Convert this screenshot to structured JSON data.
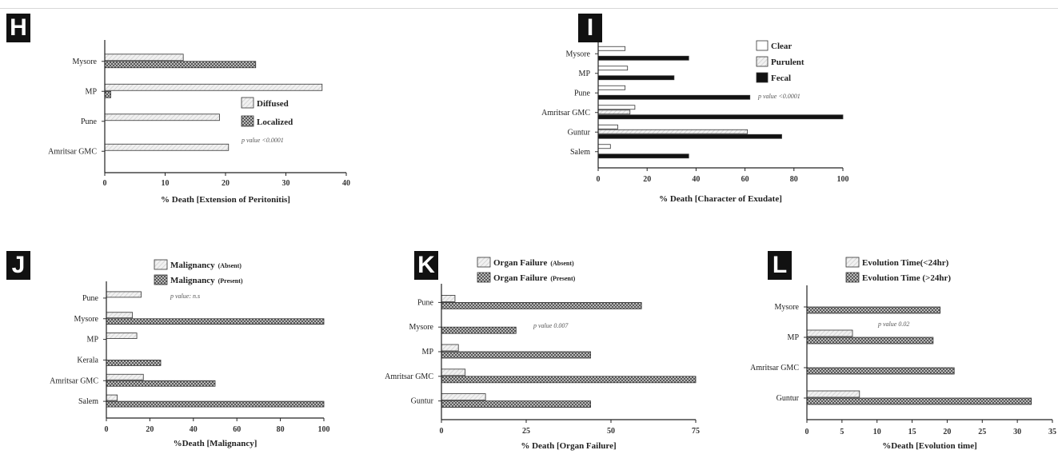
{
  "patterns": {
    "light_color": "#cfcfcf",
    "dark_color": "#555555",
    "black_color": "#111111"
  },
  "chart_data": [
    {
      "panel": "H",
      "type": "bar",
      "orientation": "horizontal",
      "categories": [
        "Mysore",
        "MP",
        "Pune",
        "Amritsar GMC"
      ],
      "series": [
        {
          "name": "Diffused",
          "style": "light",
          "values": [
            13,
            36,
            19,
            20.5
          ]
        },
        {
          "name": "Localized",
          "style": "dark",
          "values": [
            25,
            1,
            0,
            0
          ]
        }
      ],
      "xlabel": "% Death [Extension of Peritonitis]",
      "xticks": [
        0,
        10,
        20,
        30,
        40
      ],
      "xlim": [
        0,
        40
      ],
      "annotation": "p value <0.0001",
      "legend_position": "right"
    },
    {
      "panel": "I",
      "type": "bar",
      "orientation": "horizontal",
      "categories": [
        "Mysore",
        "MP",
        "Pune",
        "Amritsar GMC",
        "Guntur",
        "Salem"
      ],
      "series": [
        {
          "name": "Clear",
          "style": "white",
          "values": [
            11,
            12,
            11,
            15,
            8,
            5
          ]
        },
        {
          "name": "Purulent",
          "style": "light",
          "values": [
            0,
            0,
            0,
            13,
            61,
            0
          ]
        },
        {
          "name": "Fecal",
          "style": "black",
          "values": [
            37,
            31,
            62,
            100,
            75,
            37
          ]
        }
      ],
      "xlabel": "% Death [Character of Exudate]",
      "xticks": [
        0,
        20,
        40,
        60,
        80,
        100
      ],
      "xlim": [
        0,
        100
      ],
      "annotation": "p value <0.0001",
      "legend_position": "top-right"
    },
    {
      "panel": "J",
      "type": "bar",
      "orientation": "horizontal",
      "categories": [
        "Pune",
        "Mysore",
        "MP",
        "Kerala",
        "Amritsar GMC",
        "Salem"
      ],
      "series": [
        {
          "name": "Malignancy",
          "suffix": "(Absent)",
          "style": "light",
          "values": [
            16,
            12,
            14,
            0,
            17,
            5
          ]
        },
        {
          "name": "Malignancy",
          "suffix": "(Present)",
          "style": "dark",
          "values": [
            0,
            100,
            0,
            25,
            50,
            100
          ]
        }
      ],
      "xlabel": "%Death [Malignancy]",
      "xticks": [
        0,
        20,
        40,
        60,
        80,
        100
      ],
      "xlim": [
        0,
        100
      ],
      "annotation": "p value: n.s",
      "legend_position": "top"
    },
    {
      "panel": "K",
      "type": "bar",
      "orientation": "horizontal",
      "categories": [
        "Pune",
        "Mysore",
        "MP",
        "Amritsar GMC",
        "Guntur"
      ],
      "series": [
        {
          "name": "Organ Failure",
          "suffix": "(Absent)",
          "style": "light",
          "values": [
            4,
            0,
            5,
            7,
            13
          ]
        },
        {
          "name": "Organ Failure",
          "suffix": "(Present)",
          "style": "dark",
          "values": [
            59,
            22,
            44,
            75,
            44
          ]
        }
      ],
      "xlabel": "% Death [Organ Failure]",
      "xticks": [
        0,
        25,
        50,
        75
      ],
      "xlim": [
        0,
        75
      ],
      "annotation": "p value 0.007",
      "legend_position": "top"
    },
    {
      "panel": "L",
      "type": "bar",
      "orientation": "horizontal",
      "categories": [
        "Mysore",
        "MP",
        "Amritsar GMC",
        "Guntur"
      ],
      "series": [
        {
          "name": "Evolution Time(<24hr)",
          "style": "light",
          "values": [
            0,
            6.5,
            0,
            7.5
          ]
        },
        {
          "name": "Evolution Time (>24hr)",
          "style": "dark",
          "values": [
            19,
            18,
            21,
            32
          ]
        }
      ],
      "xlabel": "%Death [Evolution time]",
      "xticks": [
        0,
        5,
        10,
        15,
        20,
        25,
        30,
        35
      ],
      "xlim": [
        0,
        35
      ],
      "annotation": "p value 0.02",
      "legend_position": "top"
    }
  ]
}
